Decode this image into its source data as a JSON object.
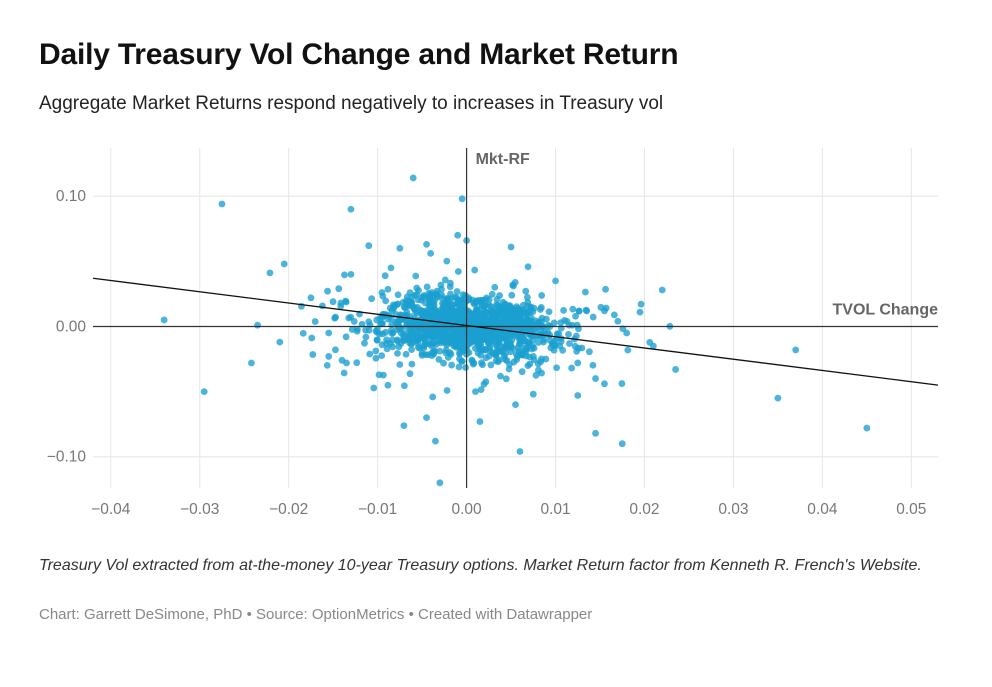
{
  "header": {
    "title": "Daily Treasury Vol Change and Market Return",
    "subtitle": "Aggregate Market Returns respond negatively to increases in Treasury vol"
  },
  "footer": {
    "notes": "Treasury Vol extracted from at-the-money 10-year Treasury options. Market Return factor from Kenneth R. French's Website.",
    "byline_chart": "Chart: Garrett DeSimone, PhD",
    "byline_source": "Source: OptionMetrics",
    "byline_tool": "Created with Datawrapper",
    "byline_separator": " • "
  },
  "colors": {
    "points": "#1a9fcf",
    "fit_line": "#111111",
    "grid": "#e6e6e6",
    "zero_axis": "#333333"
  },
  "chart_data": {
    "type": "scatter",
    "xlabel": "TVOL Change",
    "ylabel": "Mkt-RF",
    "xlim": [
      -0.042,
      0.053
    ],
    "ylim": [
      -0.124,
      0.137
    ],
    "x_ticks": [
      -0.04,
      -0.03,
      -0.02,
      -0.01,
      0.0,
      0.01,
      0.02,
      0.03,
      0.04,
      0.05
    ],
    "x_tick_labels": [
      "−0.04",
      "−0.03",
      "−0.02",
      "−0.01",
      "0.00",
      "0.01",
      "0.02",
      "0.03",
      "0.04",
      "0.05"
    ],
    "y_ticks": [
      0.1,
      0.0,
      -0.1
    ],
    "y_tick_labels": [
      "0.10",
      "0.00",
      "−0.10"
    ],
    "grid": true,
    "fit_line": {
      "x": [
        -0.042,
        0.053
      ],
      "y": [
        0.037,
        -0.045
      ]
    },
    "points": [
      {
        "x": -0.034,
        "y": 0.005
      },
      {
        "x": -0.0275,
        "y": 0.094
      },
      {
        "x": -0.0295,
        "y": -0.05
      },
      {
        "x": -0.0235,
        "y": 0.001
      },
      {
        "x": -0.0205,
        "y": 0.048
      },
      {
        "x": -0.021,
        "y": -0.012
      },
      {
        "x": -0.0175,
        "y": 0.022
      },
      {
        "x": -0.0155,
        "y": -0.005
      },
      {
        "x": -0.0155,
        "y": -0.023
      },
      {
        "x": -0.014,
        "y": -0.026
      },
      {
        "x": -0.0135,
        "y": -0.028
      },
      {
        "x": -0.013,
        "y": 0.09
      },
      {
        "x": -0.013,
        "y": 0.04
      },
      {
        "x": -0.011,
        "y": 0.062
      },
      {
        "x": -0.0095,
        "y": -0.014
      },
      {
        "x": -0.0085,
        "y": 0.045
      },
      {
        "x": -0.0075,
        "y": 0.06
      },
      {
        "x": -0.006,
        "y": 0.114
      },
      {
        "x": -0.0045,
        "y": 0.063
      },
      {
        "x": -0.0045,
        "y": -0.07
      },
      {
        "x": -0.0035,
        "y": -0.088
      },
      {
        "x": -0.003,
        "y": -0.12
      },
      {
        "x": -0.001,
        "y": 0.07
      },
      {
        "x": -0.0005,
        "y": 0.098
      },
      {
        "x": 0.0,
        "y": 0.066
      },
      {
        "x": 0.001,
        "y": -0.05
      },
      {
        "x": 0.0015,
        "y": -0.073
      },
      {
        "x": 0.005,
        "y": 0.061
      },
      {
        "x": 0.0055,
        "y": -0.06
      },
      {
        "x": 0.006,
        "y": -0.096
      },
      {
        "x": 0.0075,
        "y": -0.052
      },
      {
        "x": 0.01,
        "y": 0.035
      },
      {
        "x": 0.0125,
        "y": -0.028
      },
      {
        "x": 0.0125,
        "y": -0.053
      },
      {
        "x": 0.0135,
        "y": 0.012
      },
      {
        "x": 0.0145,
        "y": -0.082
      },
      {
        "x": 0.0145,
        "y": -0.04
      },
      {
        "x": 0.0155,
        "y": -0.044
      },
      {
        "x": 0.0155,
        "y": 0.012
      },
      {
        "x": 0.017,
        "y": 0.004
      },
      {
        "x": 0.0175,
        "y": -0.09
      },
      {
        "x": 0.018,
        "y": -0.005
      },
      {
        "x": 0.0195,
        "y": 0.011
      },
      {
        "x": 0.021,
        "y": -0.015
      },
      {
        "x": 0.022,
        "y": 0.028
      },
      {
        "x": 0.0235,
        "y": -0.033
      },
      {
        "x": 0.035,
        "y": -0.055
      },
      {
        "x": 0.037,
        "y": -0.018
      },
      {
        "x": 0.045,
        "y": -0.078
      }
    ],
    "cluster_center": {
      "x": 0.0,
      "y": 0.0
    },
    "cluster_spread": {
      "x": 0.0045,
      "y": 0.011
    },
    "cluster_count": 1400
  }
}
